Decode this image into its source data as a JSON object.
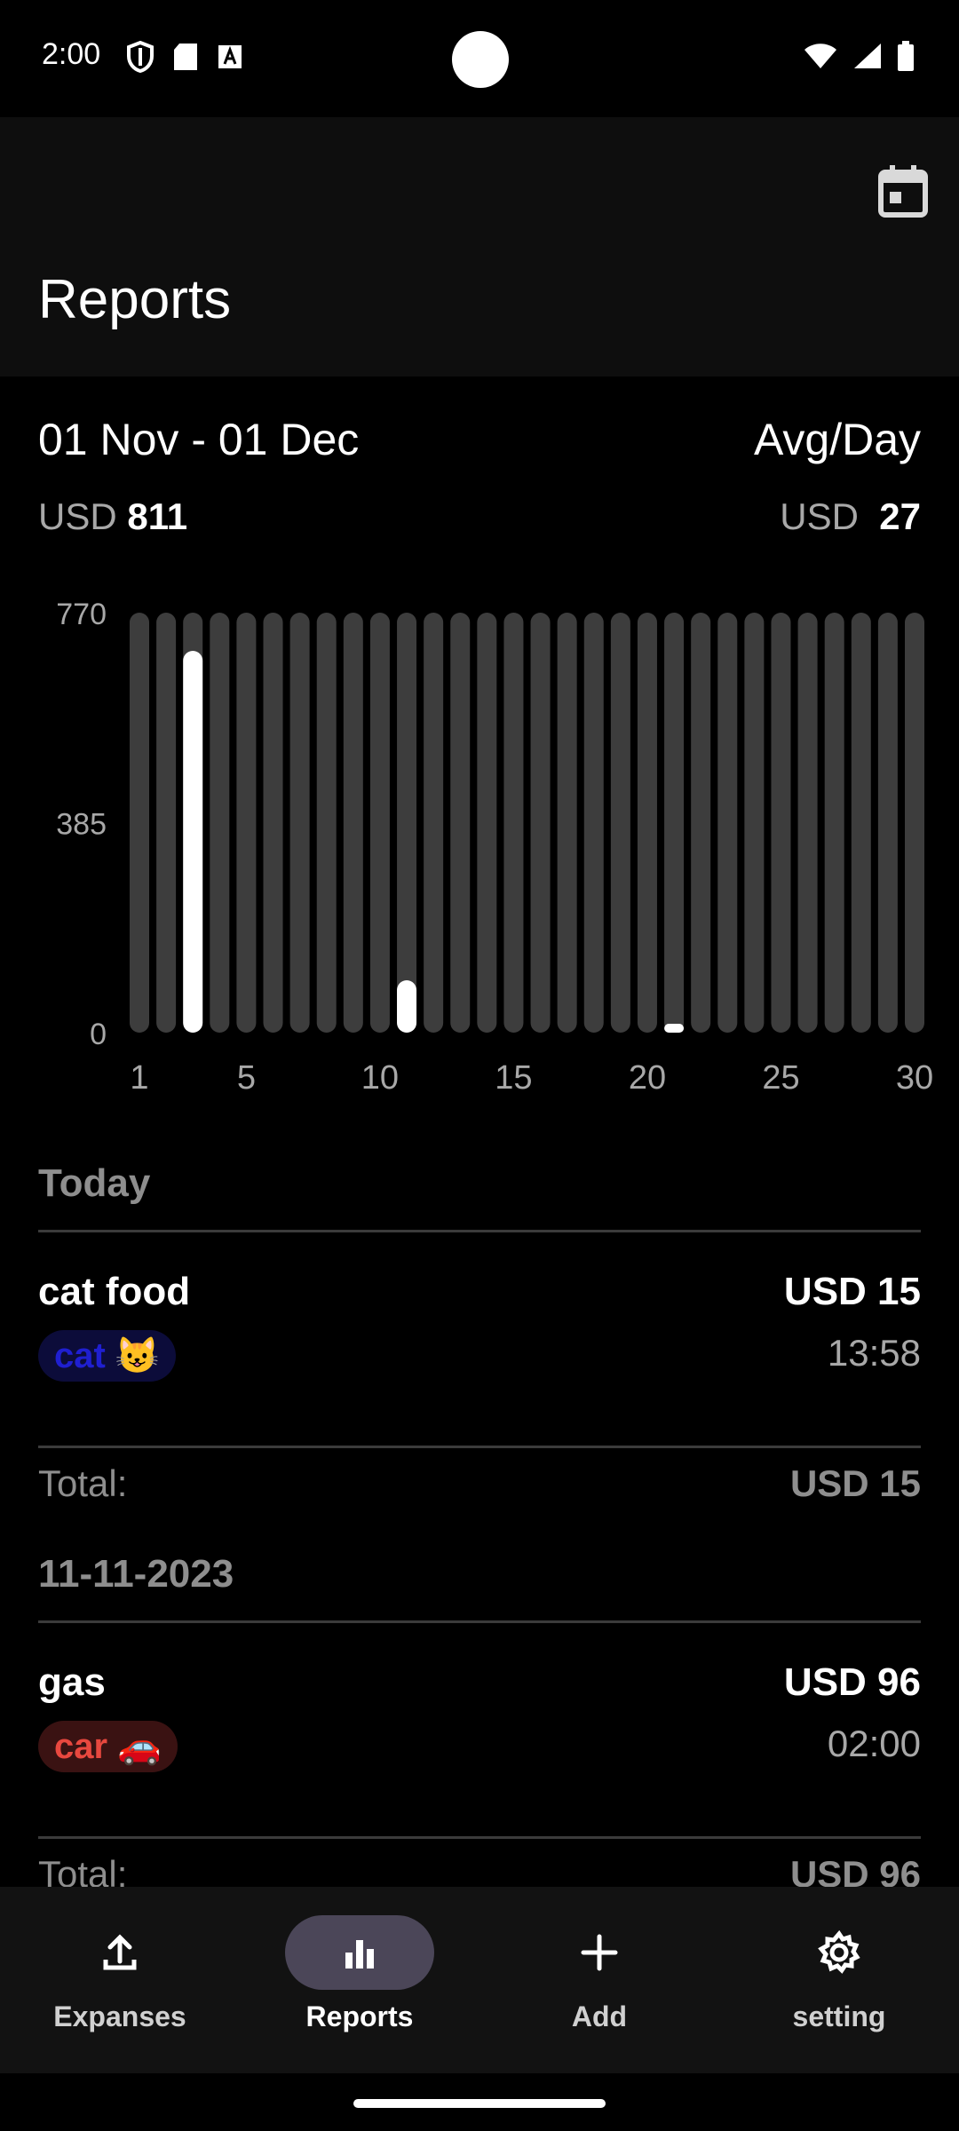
{
  "status": {
    "time": "2:00"
  },
  "appbar": {
    "title": "Reports"
  },
  "summary": {
    "range": "01 Nov - 01 Dec",
    "avg_label": "Avg/Day",
    "currency": "USD",
    "total": "811",
    "avg": "27"
  },
  "chart_data": {
    "type": "bar",
    "categories": [
      "1",
      "2",
      "3",
      "4",
      "5",
      "6",
      "7",
      "8",
      "9",
      "10",
      "11",
      "12",
      "13",
      "14",
      "15",
      "16",
      "17",
      "18",
      "19",
      "20",
      "21",
      "22",
      "23",
      "24",
      "25",
      "26",
      "27",
      "28",
      "29",
      "30"
    ],
    "values": [
      0,
      0,
      700,
      0,
      0,
      0,
      0,
      0,
      0,
      0,
      96,
      0,
      0,
      0,
      0,
      0,
      0,
      0,
      0,
      0,
      15,
      0,
      0,
      0,
      0,
      0,
      0,
      0,
      0,
      0
    ],
    "ylim": [
      0,
      770
    ],
    "y_ticks": [
      "770",
      "385",
      "0"
    ],
    "x_ticks": [
      "1",
      "5",
      "10",
      "15",
      "20",
      "25",
      "30"
    ],
    "colors": {
      "bar": "#ffffff",
      "track": "#3d3d3d",
      "tick": "#a8a8a8"
    }
  },
  "groups": [
    {
      "title": "Today",
      "items": [
        {
          "name": "cat food",
          "amount": "USD 15",
          "time": "13:58",
          "tag": "cat 😺",
          "tag_color": "#1f1fd0",
          "tag_bg": "#0c0c3a"
        }
      ],
      "total_label": "Total:",
      "total": "USD 15"
    },
    {
      "title": "11-11-2023",
      "items": [
        {
          "name": "gas",
          "amount": "USD 96",
          "time": "02:00",
          "tag": "car 🚗",
          "tag_color": "#e8483f",
          "tag_bg": "#3a1212"
        }
      ],
      "total_label": "Total:",
      "total": "USD 96"
    }
  ],
  "nav": [
    {
      "label": "Expanses",
      "icon": "upload-icon",
      "active": false
    },
    {
      "label": "Reports",
      "icon": "bar-chart-icon",
      "active": true
    },
    {
      "label": "Add",
      "icon": "plus-icon",
      "active": false
    },
    {
      "label": "setting",
      "icon": "gear-icon",
      "active": false
    }
  ]
}
